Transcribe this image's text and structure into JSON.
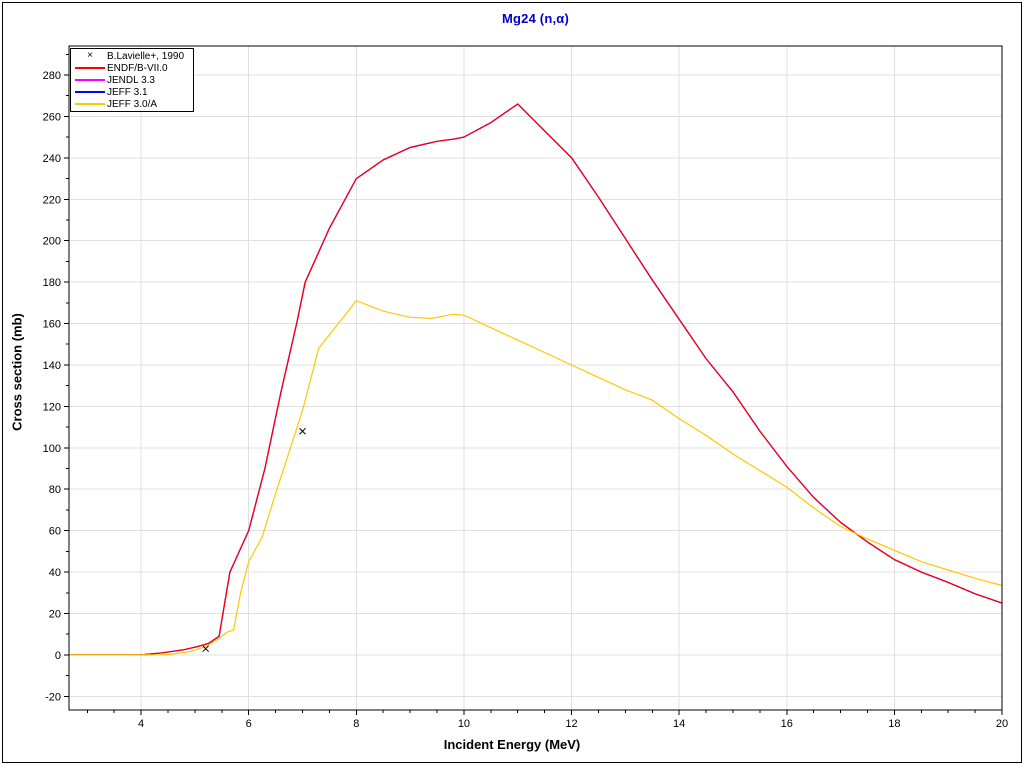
{
  "chart_data": {
    "type": "line",
    "title": "Mg24 (n,α)",
    "xlabel": "Incident Energy (MeV)",
    "ylabel": "Cross section (mb)",
    "xlim": [
      2.66,
      20
    ],
    "ylim": [
      -26.6,
      294
    ],
    "x_major_ticks": [
      4,
      6,
      8,
      10,
      12,
      14,
      16,
      18,
      20
    ],
    "x_minor_step": 0.5,
    "y_major_ticks": [
      -20,
      0,
      20,
      40,
      60,
      80,
      100,
      120,
      140,
      160,
      180,
      200,
      220,
      240,
      260,
      280
    ],
    "y_minor_step": 10,
    "grid": "major-both",
    "legend_position": "top-left",
    "colors": {
      "title": "#0000cc",
      "grid": "#e0e0e0",
      "frame": "#000000",
      "tick_text": "#000000"
    },
    "series": [
      {
        "name": "JENDL 3.3",
        "color": "#ff00ff",
        "points": [
          [
            2.66,
            0
          ],
          [
            4,
            0
          ],
          [
            4.4,
            1
          ],
          [
            4.8,
            2.5
          ],
          [
            5.05,
            4
          ],
          [
            5.25,
            5.5
          ],
          [
            5.45,
            9
          ],
          [
            5.65,
            40
          ],
          [
            6,
            60
          ],
          [
            6.3,
            90
          ],
          [
            6.6,
            127
          ],
          [
            6.9,
            161
          ],
          [
            7.05,
            180
          ],
          [
            7.5,
            206
          ],
          [
            8,
            230
          ],
          [
            8.5,
            239
          ],
          [
            9,
            245
          ],
          [
            9.5,
            248
          ],
          [
            9.8,
            249
          ],
          [
            10,
            250
          ],
          [
            10.5,
            257
          ],
          [
            11,
            266
          ],
          [
            11.5,
            253
          ],
          [
            12,
            240
          ],
          [
            12.5,
            221
          ],
          [
            13,
            201
          ],
          [
            13.5,
            181
          ],
          [
            14,
            162
          ],
          [
            14.5,
            143
          ],
          [
            15,
            127
          ],
          [
            15.5,
            108
          ],
          [
            16,
            91
          ],
          [
            16.5,
            76
          ],
          [
            17,
            64
          ],
          [
            17.5,
            54.5
          ],
          [
            18,
            46
          ],
          [
            18.5,
            40
          ],
          [
            19,
            35
          ],
          [
            19.5,
            29.5
          ],
          [
            20,
            25
          ]
        ]
      },
      {
        "name": "JEFF 3.1",
        "color": "#0000ff",
        "points": [
          [
            2.66,
            0
          ],
          [
            4,
            0
          ],
          [
            4.4,
            1
          ],
          [
            4.8,
            2.5
          ],
          [
            5.05,
            4
          ],
          [
            5.25,
            5.5
          ],
          [
            5.45,
            9
          ],
          [
            5.65,
            40
          ],
          [
            6,
            60
          ],
          [
            6.3,
            90
          ],
          [
            6.6,
            127
          ],
          [
            6.9,
            161
          ],
          [
            7.05,
            180
          ],
          [
            7.5,
            206
          ],
          [
            8,
            230
          ],
          [
            8.5,
            239
          ],
          [
            9,
            245
          ],
          [
            9.5,
            248
          ],
          [
            9.8,
            249
          ],
          [
            10,
            250
          ],
          [
            10.5,
            257
          ],
          [
            11,
            266
          ],
          [
            11.5,
            253
          ],
          [
            12,
            240
          ],
          [
            12.5,
            221
          ],
          [
            13,
            201
          ],
          [
            13.5,
            181
          ],
          [
            14,
            162
          ],
          [
            14.5,
            143
          ],
          [
            15,
            127
          ],
          [
            15.5,
            108
          ],
          [
            16,
            91
          ],
          [
            16.5,
            76
          ],
          [
            17,
            64
          ],
          [
            17.5,
            54.5
          ],
          [
            18,
            46
          ],
          [
            18.5,
            40
          ],
          [
            19,
            35
          ],
          [
            19.5,
            29.5
          ],
          [
            20,
            25
          ]
        ]
      },
      {
        "name": "ENDF/B-VII.0",
        "color": "#ff0000",
        "points": [
          [
            2.66,
            0
          ],
          [
            4,
            0
          ],
          [
            4.4,
            1
          ],
          [
            4.8,
            2.5
          ],
          [
            5.05,
            4
          ],
          [
            5.25,
            5.5
          ],
          [
            5.45,
            9
          ],
          [
            5.65,
            40
          ],
          [
            6,
            60
          ],
          [
            6.3,
            90
          ],
          [
            6.6,
            127
          ],
          [
            6.9,
            161
          ],
          [
            7.05,
            180
          ],
          [
            7.5,
            206
          ],
          [
            8,
            230
          ],
          [
            8.5,
            239
          ],
          [
            9,
            245
          ],
          [
            9.5,
            248
          ],
          [
            9.8,
            249
          ],
          [
            10,
            250
          ],
          [
            10.5,
            257
          ],
          [
            11,
            266
          ],
          [
            11.5,
            253
          ],
          [
            12,
            240
          ],
          [
            12.5,
            221
          ],
          [
            13,
            201
          ],
          [
            13.5,
            181
          ],
          [
            14,
            162
          ],
          [
            14.5,
            143
          ],
          [
            15,
            127
          ],
          [
            15.5,
            108
          ],
          [
            16,
            91
          ],
          [
            16.5,
            76
          ],
          [
            17,
            64
          ],
          [
            17.5,
            54.5
          ],
          [
            18,
            46
          ],
          [
            18.5,
            40
          ],
          [
            19,
            35
          ],
          [
            19.5,
            29.5
          ],
          [
            20,
            25
          ]
        ]
      },
      {
        "name": "JEFF 3.0/A",
        "color": "#ffc800",
        "points": [
          [
            2.66,
            0
          ],
          [
            4.45,
            0
          ],
          [
            4.9,
            1.5
          ],
          [
            5.2,
            4
          ],
          [
            5.45,
            8
          ],
          [
            5.6,
            11
          ],
          [
            5.72,
            12
          ],
          [
            5.85,
            30
          ],
          [
            6,
            45
          ],
          [
            6.25,
            57
          ],
          [
            6.5,
            78
          ],
          [
            6.75,
            98
          ],
          [
            7,
            118
          ],
          [
            7.3,
            148
          ],
          [
            8,
            171
          ],
          [
            8.5,
            166
          ],
          [
            9,
            163
          ],
          [
            9.4,
            162.5
          ],
          [
            9.8,
            164.5
          ],
          [
            10,
            164
          ],
          [
            10.5,
            158
          ],
          [
            11,
            152
          ],
          [
            11.5,
            146
          ],
          [
            12,
            140
          ],
          [
            12.5,
            134
          ],
          [
            13,
            128
          ],
          [
            13.5,
            123
          ],
          [
            14,
            114
          ],
          [
            14.5,
            106
          ],
          [
            15,
            97
          ],
          [
            15.5,
            89
          ],
          [
            16,
            81
          ],
          [
            16.5,
            71
          ],
          [
            17,
            62
          ],
          [
            17.5,
            56
          ],
          [
            18,
            50.5
          ],
          [
            18.5,
            45
          ],
          [
            19,
            41
          ],
          [
            19.5,
            37
          ],
          [
            20,
            33.5
          ]
        ]
      }
    ],
    "scatter_series": [
      {
        "name": "B.Lavielle+, 1990",
        "marker": "x",
        "color": "#000000",
        "points": [
          [
            5.2,
            3
          ],
          [
            7.0,
            108
          ]
        ]
      }
    ],
    "legend": {
      "items": [
        {
          "label": "B.Lavielle+, 1990",
          "marker": "x",
          "color": "#000000"
        },
        {
          "label": "ENDF/B-VII.0",
          "marker": "line",
          "color": "#ff0000"
        },
        {
          "label": "JENDL 3.3",
          "marker": "line",
          "color": "#ff00ff"
        },
        {
          "label": "JEFF 3.1",
          "marker": "line",
          "color": "#0000ff"
        },
        {
          "label": "JEFF 3.0/A",
          "marker": "line",
          "color": "#ffc800"
        }
      ]
    }
  }
}
